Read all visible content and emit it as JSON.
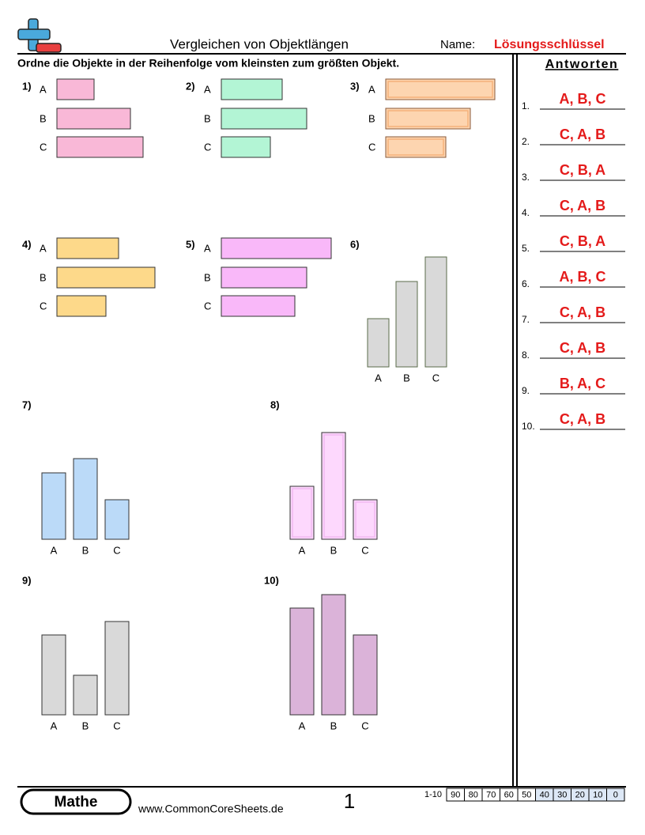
{
  "header": {
    "title": "Vergleichen von Objektlängen",
    "name_label": "Name:",
    "name_value": "Lösungsschlüssel"
  },
  "instruction": "Ordne die Objekte in der Reihenfolge vom kleinsten zum größten Objekt.",
  "problems": [
    {
      "number": "1)",
      "labels": [
        "A",
        "B",
        "C"
      ]
    },
    {
      "number": "2)",
      "labels": [
        "A",
        "B",
        "C"
      ]
    },
    {
      "number": "3)",
      "labels": [
        "A",
        "B",
        "C"
      ]
    },
    {
      "number": "4)",
      "labels": [
        "A",
        "B",
        "C"
      ]
    },
    {
      "number": "5)",
      "labels": [
        "A",
        "B",
        "C"
      ]
    },
    {
      "number": "6)",
      "labels": [
        "A",
        "B",
        "C"
      ]
    },
    {
      "number": "7)",
      "labels": [
        "A",
        "B",
        "C"
      ]
    },
    {
      "number": "8)",
      "labels": [
        "A",
        "B",
        "C"
      ]
    },
    {
      "number": "9)",
      "labels": [
        "A",
        "B",
        "C"
      ]
    },
    {
      "number": "10)",
      "labels": [
        "A",
        "B",
        "C"
      ]
    }
  ],
  "answers": {
    "title": "Antworten",
    "items": [
      {
        "number": "1.",
        "answer": "A, B, C"
      },
      {
        "number": "2.",
        "answer": "C, A, B"
      },
      {
        "number": "3.",
        "answer": "C, B, A"
      },
      {
        "number": "4.",
        "answer": "C, A, B"
      },
      {
        "number": "5.",
        "answer": "C, B, A"
      },
      {
        "number": "6.",
        "answer": "A, B, C"
      },
      {
        "number": "7.",
        "answer": "C, A, B"
      },
      {
        "number": "8.",
        "answer": "C, A, B"
      },
      {
        "number": "9.",
        "answer": "B, A, C"
      },
      {
        "number": "10.",
        "answer": "C, A, B"
      }
    ]
  },
  "footer": {
    "brand": "Mathe",
    "url": "www.CommonCoreSheets.de",
    "page": "1",
    "score_label": "1-10",
    "scores": [
      90,
      80,
      70,
      60,
      50,
      40,
      30,
      20,
      10,
      0
    ]
  }
}
